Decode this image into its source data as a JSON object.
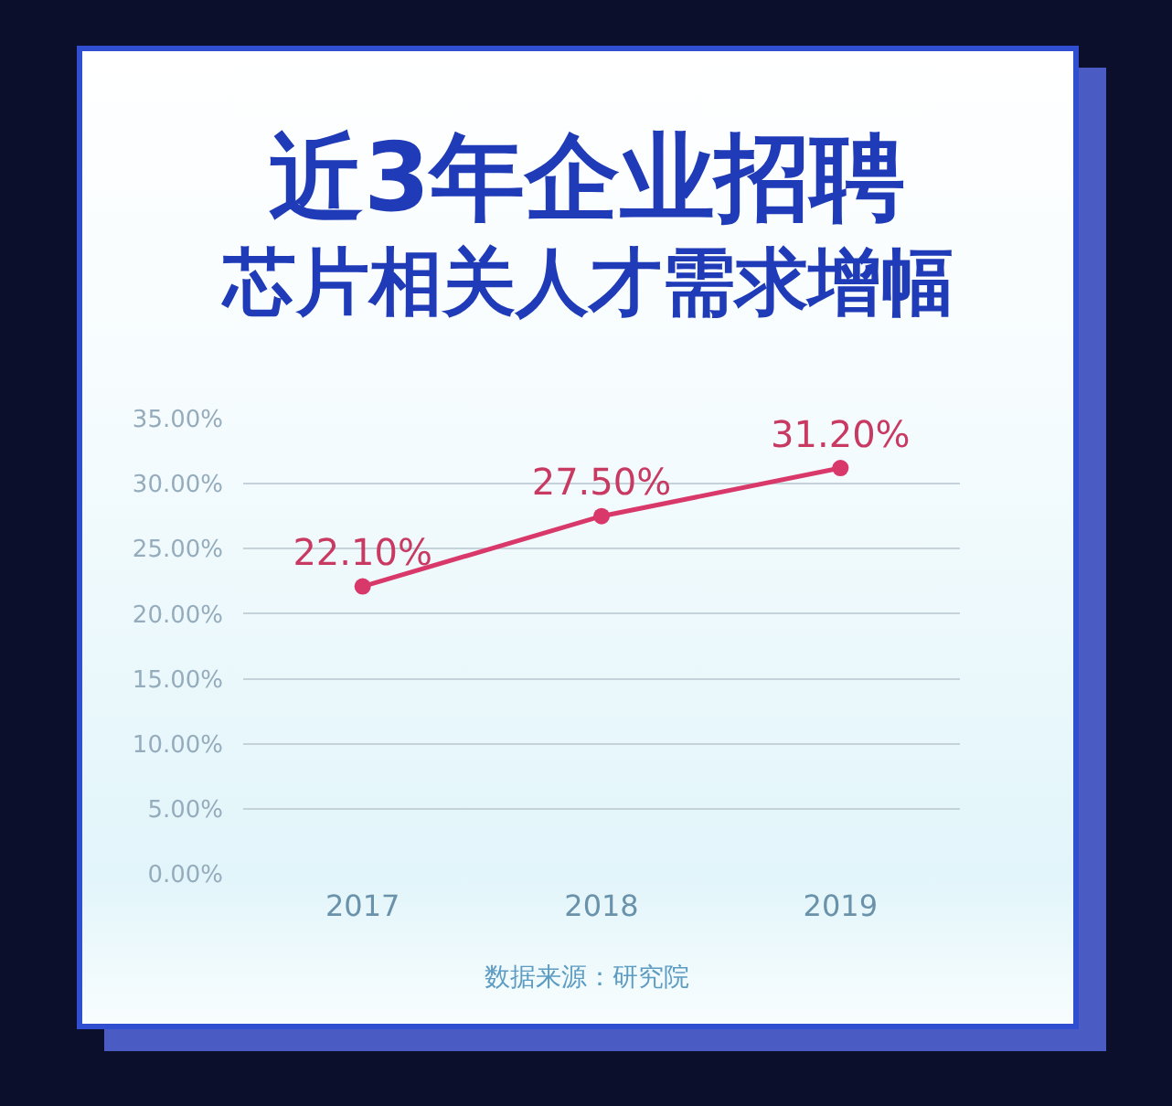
{
  "chart_data": {
    "type": "line",
    "title": "近3年企业招聘",
    "subtitle": "芯片相关人才需求增幅",
    "categories": [
      "2017",
      "2018",
      "2019"
    ],
    "values": [
      22.1,
      27.5,
      31.2
    ],
    "color": "#d9386a",
    "value_labels": [
      "22.10%",
      "27.50%",
      "31.20%"
    ],
    "ylim": [
      0,
      35
    ],
    "yticks": [
      {
        "value": 0,
        "label": "0.00%"
      },
      {
        "value": 5,
        "label": "5.00%"
      },
      {
        "value": 10,
        "label": "10.00%"
      },
      {
        "value": 15,
        "label": "15.00%"
      },
      {
        "value": 20,
        "label": "20.00%"
      },
      {
        "value": 25,
        "label": "25.00%"
      },
      {
        "value": 30,
        "label": "30.00%"
      },
      {
        "value": 35,
        "label": "35.00%"
      }
    ],
    "grid": "y",
    "marker": "circle",
    "line_style": "solid",
    "annotations": [
      "数据来源：研究院"
    ]
  }
}
